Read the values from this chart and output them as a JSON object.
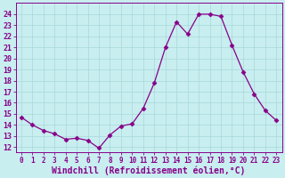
{
  "x": [
    0,
    1,
    2,
    3,
    4,
    5,
    6,
    7,
    8,
    9,
    10,
    11,
    12,
    13,
    14,
    15,
    16,
    17,
    18,
    19,
    20,
    21,
    22,
    23
  ],
  "y": [
    14.7,
    14.0,
    13.5,
    13.2,
    12.7,
    12.8,
    12.6,
    11.9,
    13.1,
    13.9,
    14.1,
    15.5,
    17.8,
    21.0,
    23.3,
    22.2,
    24.0,
    24.0,
    23.8,
    21.2,
    18.8,
    16.8,
    15.3,
    14.4
  ],
  "line_color": "#880088",
  "marker": "D",
  "marker_size": 2.5,
  "background_color": "#c8eef0",
  "grid_color": "#a8d8da",
  "xlabel": "Windchill (Refroidissement éolien,°C)",
  "ylim": [
    11.5,
    25.0
  ],
  "xlim": [
    -0.5,
    23.5
  ],
  "yticks": [
    12,
    13,
    14,
    15,
    16,
    17,
    18,
    19,
    20,
    21,
    22,
    23,
    24
  ],
  "xticks": [
    0,
    1,
    2,
    3,
    4,
    5,
    6,
    7,
    8,
    9,
    10,
    11,
    12,
    13,
    14,
    15,
    16,
    17,
    18,
    19,
    20,
    21,
    22,
    23
  ],
  "tick_fontsize": 5.5,
  "xlabel_fontsize": 7.0,
  "figsize": [
    3.2,
    2.0
  ],
  "dpi": 100
}
